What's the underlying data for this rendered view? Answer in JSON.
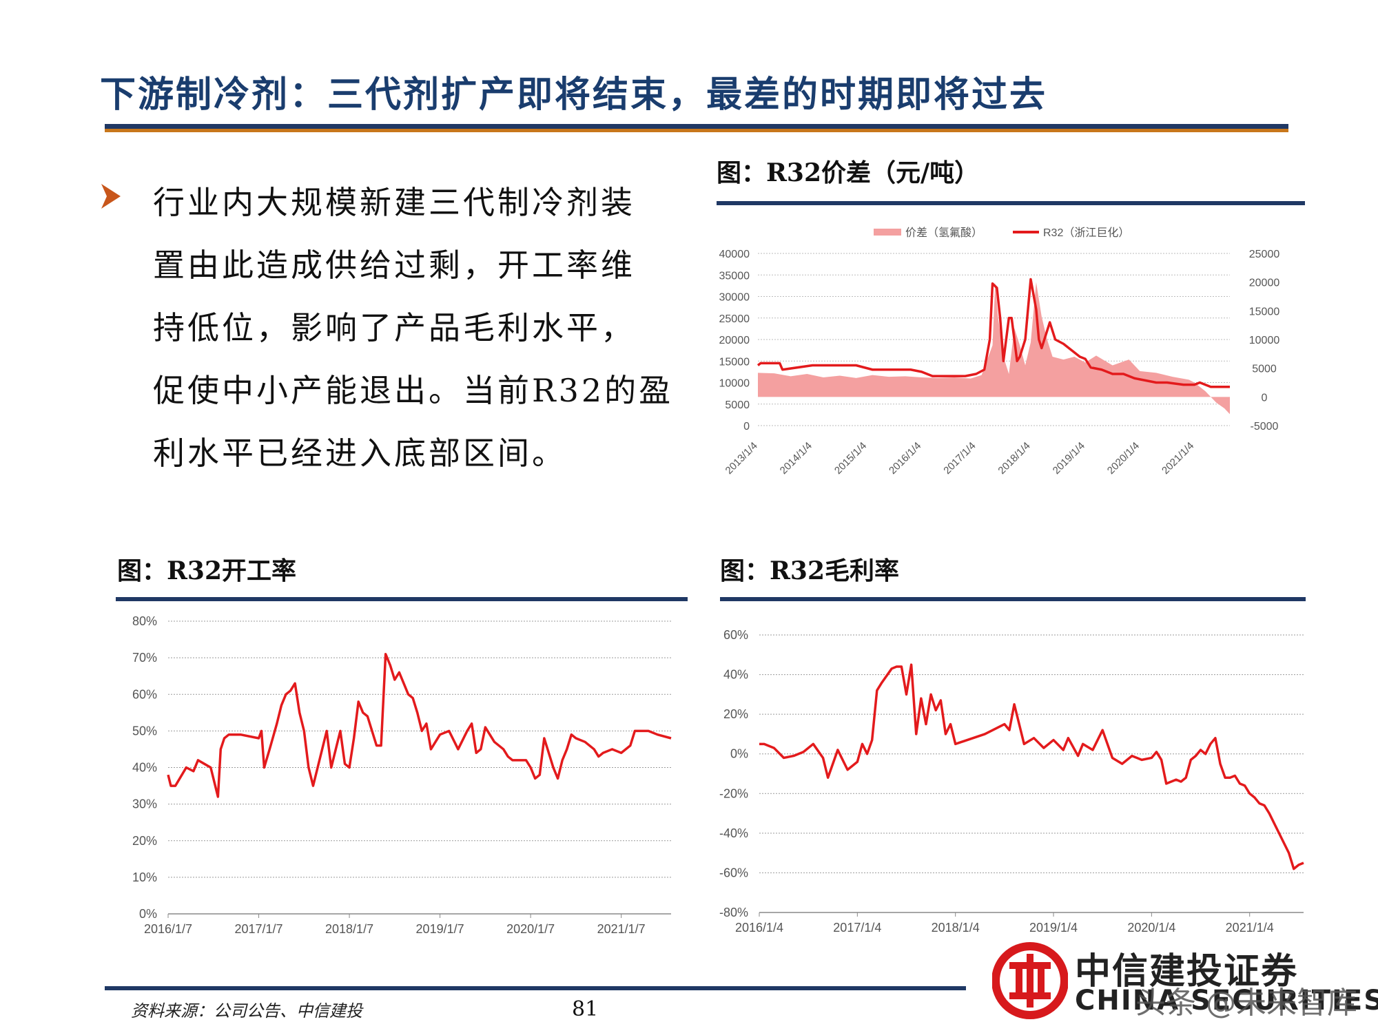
{
  "page": {
    "title": "下游制冷剂：三代剂扩产即将结束，最差的时期即将过去",
    "body_lines": [
      "行业内大规模新建三代制冷剂装",
      "置由此造成供给过剩，开工率维",
      "持低位，影响了产品毛利水平，",
      "促使中小产能退出。当前R32的盈",
      "利水平已经进入底部区间。"
    ],
    "source_note": "资料来源：公司公告、中信建投",
    "page_number": "81",
    "logo_name": "中信建投证券",
    "logo_en": "CHINA SECURITIES",
    "watermark": "头条 @未来智库",
    "colors": {
      "title": "#1a3d6e",
      "rule": "#1f3864",
      "rule_shadow": "#c8771b",
      "accent_red": "#e31a1c",
      "spread_fill": "#f4a0a0",
      "bullet": "#c8561b"
    }
  },
  "chart_data": [
    {
      "id": "spread",
      "type": "area",
      "title": "图：R32价差（元/吨）",
      "legend_position": "top",
      "grid": true,
      "x_ticks": [
        "2013/1/4",
        "2014/1/4",
        "2015/1/4",
        "2016/1/4",
        "2017/1/4",
        "2018/1/4",
        "2019/1/4",
        "2020/1/4",
        "2021/1/4"
      ],
      "left_axis": {
        "ylim": [
          0,
          40000
        ],
        "ticks": [
          "40000",
          "35000",
          "30000",
          "25000",
          "20000",
          "15000",
          "10000",
          "5000",
          "0"
        ]
      },
      "right_axis": {
        "ylim": [
          -5000,
          25000
        ],
        "ticks": [
          "25000",
          "20000",
          "15000",
          "10000",
          "5000",
          "0",
          "-5000"
        ]
      },
      "series": [
        {
          "name": "价差（氢氟酸）",
          "axis": "right",
          "style": "area",
          "color": "#f4a0a0",
          "x": [
            2013.0,
            2013.3,
            2013.6,
            2013.9,
            2014.2,
            2014.5,
            2014.8,
            2015.1,
            2015.4,
            2015.7,
            2016.0,
            2016.3,
            2016.6,
            2016.9,
            2017.1,
            2017.3,
            2017.35,
            2017.4,
            2017.5,
            2017.6,
            2017.7,
            2017.8,
            2017.9,
            2018.0,
            2018.1,
            2018.2,
            2018.3,
            2018.4,
            2018.6,
            2018.8,
            2019.0,
            2019.2,
            2019.5,
            2019.8,
            2020.0,
            2020.3,
            2020.6,
            2020.9,
            2021.0,
            2021.2,
            2021.4,
            2021.55,
            2021.65
          ],
          "y": [
            4200,
            4100,
            3600,
            4000,
            3400,
            3700,
            3300,
            3800,
            3500,
            3600,
            3400,
            3300,
            3400,
            3200,
            3800,
            9000,
            20000,
            14000,
            7000,
            4000,
            12000,
            9000,
            5500,
            9500,
            20000,
            14000,
            10000,
            7000,
            6500,
            7000,
            6000,
            7200,
            5500,
            6500,
            4500,
            4200,
            3500,
            3000,
            2500,
            1000,
            -1000,
            -2000,
            -3000
          ]
        },
        {
          "name": "R32（浙江巨化）",
          "axis": "left",
          "style": "line",
          "color": "#e31a1c",
          "x": [
            2013.0,
            2013.05,
            2013.4,
            2013.45,
            2014.0,
            2014.8,
            2015.1,
            2015.8,
            2016.0,
            2016.2,
            2016.5,
            2016.8,
            2017.0,
            2017.15,
            2017.25,
            2017.3,
            2017.38,
            2017.44,
            2017.5,
            2017.6,
            2017.65,
            2017.75,
            2017.8,
            2017.9,
            2018.0,
            2018.1,
            2018.15,
            2018.2,
            2018.3,
            2018.35,
            2018.45,
            2018.6,
            2018.9,
            2019.0,
            2019.1,
            2019.3,
            2019.5,
            2019.7,
            2019.9,
            2020.1,
            2020.3,
            2020.5,
            2020.8,
            2021.0,
            2021.1,
            2021.2,
            2021.3,
            2021.5,
            2021.65
          ],
          "y": [
            14000,
            14500,
            14500,
            13000,
            14000,
            14000,
            13000,
            13000,
            12500,
            11500,
            11500,
            11500,
            12000,
            13000,
            20000,
            33000,
            32000,
            25000,
            15000,
            25000,
            25000,
            15000,
            16000,
            20000,
            34000,
            27000,
            20000,
            18000,
            22000,
            24000,
            20000,
            19000,
            16000,
            15500,
            13500,
            13000,
            12000,
            12000,
            11000,
            10500,
            10000,
            10000,
            9500,
            9500,
            10000,
            9500,
            9000,
            9000,
            9000
          ]
        }
      ]
    },
    {
      "id": "operating-rate",
      "type": "line",
      "title": "图：R32开工率",
      "grid": true,
      "x_ticks": [
        "2016/1/7",
        "2017/1/7",
        "2018/1/7",
        "2019/1/7",
        "2020/1/7",
        "2021/1/7"
      ],
      "ylim": [
        0,
        80
      ],
      "y_ticks": [
        "80%",
        "70%",
        "60%",
        "50%",
        "40%",
        "30%",
        "20%",
        "10%",
        "0%"
      ],
      "series": [
        {
          "name": "",
          "color": "#e31a1c",
          "x": [
            2016.0,
            2016.03,
            2016.08,
            2016.2,
            2016.28,
            2016.33,
            2016.4,
            2016.47,
            2016.55,
            2016.58,
            2016.62,
            2016.67,
            2016.72,
            2016.8,
            2017.0,
            2017.03,
            2017.06,
            2017.12,
            2017.2,
            2017.25,
            2017.3,
            2017.35,
            2017.4,
            2017.45,
            2017.5,
            2017.55,
            2017.6,
            2017.65,
            2017.7,
            2017.75,
            2017.8,
            2017.85,
            2017.9,
            2017.95,
            2018.0,
            2018.05,
            2018.1,
            2018.15,
            2018.2,
            2018.25,
            2018.3,
            2018.35,
            2018.4,
            2018.45,
            2018.5,
            2018.55,
            2018.6,
            2018.65,
            2018.7,
            2018.75,
            2018.8,
            2018.85,
            2018.9,
            2018.95,
            2019.0,
            2019.1,
            2019.2,
            2019.3,
            2019.35,
            2019.4,
            2019.45,
            2019.5,
            2019.6,
            2019.7,
            2019.75,
            2019.8,
            2019.85,
            2019.95,
            2020.0,
            2020.05,
            2020.1,
            2020.15,
            2020.2,
            2020.25,
            2020.3,
            2020.35,
            2020.4,
            2020.45,
            2020.5,
            2020.6,
            2020.7,
            2020.75,
            2020.8,
            2020.9,
            2021.0,
            2021.1,
            2021.15,
            2021.3,
            2021.4,
            2021.55
          ],
          "y": [
            38,
            35,
            35,
            40,
            39,
            42,
            41,
            40,
            32,
            45,
            48,
            49,
            49,
            49,
            48,
            50,
            40,
            45,
            52,
            57,
            60,
            61,
            63,
            55,
            50,
            40,
            35,
            40,
            45,
            50,
            40,
            45,
            50,
            41,
            40,
            48,
            58,
            55,
            54,
            50,
            46,
            46,
            71,
            68,
            64,
            66,
            63,
            60,
            59,
            55,
            50,
            52,
            45,
            47,
            49,
            50,
            45,
            50,
            52,
            44,
            45,
            51,
            47,
            45,
            43,
            42,
            42,
            42,
            40,
            37,
            38,
            48,
            44,
            40,
            37,
            42,
            45,
            49,
            48,
            47,
            45,
            43,
            44,
            45,
            44,
            46,
            50,
            50,
            49,
            48
          ]
        }
      ]
    },
    {
      "id": "gross-margin",
      "type": "line",
      "title": "图：R32毛利率",
      "grid": true,
      "x_ticks": [
        "2016/1/4",
        "2017/1/4",
        "2018/1/4",
        "2019/1/4",
        "2020/1/4",
        "2021/1/4"
      ],
      "ylim": [
        -80,
        60
      ],
      "y_ticks": [
        "60%",
        "40%",
        "20%",
        "0%",
        "-20%",
        "-40%",
        "-60%",
        "-80%"
      ],
      "series": [
        {
          "name": "",
          "color": "#e31a1c",
          "x": [
            2016.0,
            2016.05,
            2016.15,
            2016.25,
            2016.35,
            2016.45,
            2016.55,
            2016.65,
            2016.7,
            2016.75,
            2016.8,
            2016.9,
            2017.0,
            2017.05,
            2017.1,
            2017.15,
            2017.2,
            2017.25,
            2017.35,
            2017.4,
            2017.45,
            2017.5,
            2017.55,
            2017.6,
            2017.65,
            2017.7,
            2017.75,
            2017.8,
            2017.85,
            2017.9,
            2017.95,
            2018.0,
            2018.3,
            2018.5,
            2018.55,
            2018.6,
            2018.7,
            2018.8,
            2018.9,
            2019.0,
            2019.1,
            2019.15,
            2019.25,
            2019.3,
            2019.4,
            2019.5,
            2019.6,
            2019.7,
            2019.8,
            2019.9,
            2020.0,
            2020.05,
            2020.1,
            2020.15,
            2020.2,
            2020.25,
            2020.3,
            2020.35,
            2020.4,
            2020.45,
            2020.5,
            2020.55,
            2020.6,
            2020.65,
            2020.7,
            2020.75,
            2020.8,
            2020.85,
            2020.9,
            2020.95,
            2021.0,
            2021.05,
            2021.1,
            2021.15,
            2021.2,
            2021.25,
            2021.3,
            2021.35,
            2021.4,
            2021.45,
            2021.5,
            2021.55
          ],
          "y": [
            5,
            5,
            3,
            -2,
            -1,
            1,
            5,
            -2,
            -12,
            -5,
            2,
            -8,
            -4,
            5,
            0,
            7,
            32,
            36,
            43,
            44,
            44,
            30,
            45,
            10,
            28,
            15,
            30,
            22,
            27,
            10,
            15,
            5,
            10,
            15,
            12,
            25,
            5,
            8,
            3,
            7,
            2,
            8,
            -1,
            5,
            2,
            12,
            -2,
            -5,
            -1,
            -3,
            -2,
            1,
            -3,
            -15,
            -14,
            -13,
            -14,
            -12,
            -3,
            -1,
            2,
            0,
            5,
            8,
            -5,
            -12,
            -12,
            -11,
            -15,
            -16,
            -20,
            -22,
            -25,
            -26,
            -30,
            -35,
            -40,
            -45,
            -50,
            -58,
            -56,
            -55
          ]
        }
      ]
    }
  ]
}
